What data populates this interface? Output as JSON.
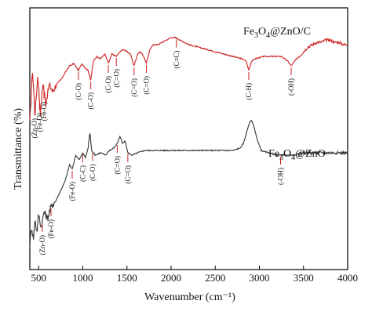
{
  "chart_data": {
    "type": "line",
    "xlabel": "Wavenumber (cm⁻¹)",
    "ylabel": "Transmittance (%)",
    "xlim": [
      400,
      4000
    ],
    "ylim": [
      0,
      100
    ],
    "xticks": [
      "500",
      "1000",
      "1500",
      "2000",
      "2500",
      "3000",
      "3500",
      "4000"
    ],
    "grid": false,
    "series": [
      {
        "name": "Fe₃O₄@ZnO/C",
        "color": "#cc1f1f",
        "points": [
          [
            400,
            58
          ],
          [
            430,
            80
          ],
          [
            460,
            62
          ],
          [
            490,
            78
          ],
          [
            520,
            62
          ],
          [
            550,
            75
          ],
          [
            580,
            66
          ],
          [
            620,
            74
          ],
          [
            660,
            71
          ],
          [
            700,
            74
          ],
          [
            750,
            76
          ],
          [
            800,
            79
          ],
          [
            850,
            82
          ],
          [
            900,
            83
          ],
          [
            950,
            80
          ],
          [
            990,
            83
          ],
          [
            1030,
            81
          ],
          [
            1060,
            80
          ],
          [
            1090,
            76
          ],
          [
            1120,
            84
          ],
          [
            1160,
            86
          ],
          [
            1200,
            85
          ],
          [
            1250,
            87
          ],
          [
            1290,
            83
          ],
          [
            1330,
            87
          ],
          [
            1380,
            86
          ],
          [
            1420,
            88
          ],
          [
            1460,
            89
          ],
          [
            1500,
            88
          ],
          [
            1540,
            87
          ],
          [
            1580,
            82
          ],
          [
            1620,
            87
          ],
          [
            1650,
            88
          ],
          [
            1690,
            86
          ],
          [
            1720,
            83
          ],
          [
            1760,
            89
          ],
          [
            1800,
            91
          ],
          [
            1850,
            91
          ],
          [
            1900,
            92
          ],
          [
            1950,
            93
          ],
          [
            2000,
            94
          ],
          [
            2050,
            94
          ],
          [
            2100,
            93
          ],
          [
            2150,
            92
          ],
          [
            2200,
            91
          ],
          [
            2300,
            90
          ],
          [
            2400,
            89
          ],
          [
            2500,
            88
          ],
          [
            2600,
            87
          ],
          [
            2700,
            86
          ],
          [
            2800,
            85
          ],
          [
            2850,
            84
          ],
          [
            2880,
            80
          ],
          [
            2910,
            84
          ],
          [
            2950,
            85
          ],
          [
            3050,
            86
          ],
          [
            3150,
            86
          ],
          [
            3250,
            86
          ],
          [
            3320,
            84
          ],
          [
            3360,
            82
          ],
          [
            3400,
            84
          ],
          [
            3450,
            86
          ],
          [
            3500,
            88
          ],
          [
            3550,
            90
          ],
          [
            3600,
            91
          ],
          [
            3650,
            92
          ],
          [
            3700,
            92
          ],
          [
            3750,
            93
          ],
          [
            3800,
            93
          ],
          [
            3850,
            92
          ],
          [
            3900,
            92
          ],
          [
            3950,
            91
          ],
          [
            4000,
            91
          ]
        ]
      },
      {
        "name": "Fe₃O₄@ZnO",
        "color": "#333333",
        "points": [
          [
            400,
            6
          ],
          [
            420,
            14
          ],
          [
            440,
            8
          ],
          [
            460,
            17
          ],
          [
            480,
            11
          ],
          [
            500,
            19
          ],
          [
            530,
            13
          ],
          [
            560,
            20
          ],
          [
            600,
            17
          ],
          [
            640,
            22
          ],
          [
            700,
            25
          ],
          [
            750,
            29
          ],
          [
            800,
            33
          ],
          [
            850,
            40
          ],
          [
            880,
            38
          ],
          [
            920,
            44
          ],
          [
            960,
            42
          ],
          [
            1000,
            45
          ],
          [
            1030,
            43
          ],
          [
            1060,
            47
          ],
          [
            1080,
            54
          ],
          [
            1100,
            46
          ],
          [
            1140,
            44
          ],
          [
            1200,
            45
          ],
          [
            1260,
            44
          ],
          [
            1300,
            46
          ],
          [
            1350,
            47
          ],
          [
            1390,
            49
          ],
          [
            1420,
            52
          ],
          [
            1450,
            49
          ],
          [
            1480,
            50
          ],
          [
            1510,
            45
          ],
          [
            1560,
            44
          ],
          [
            1620,
            45
          ],
          [
            1700,
            46
          ],
          [
            1800,
            46
          ],
          [
            1900,
            46
          ],
          [
            2000,
            46
          ],
          [
            2100,
            46
          ],
          [
            2200,
            46
          ],
          [
            2300,
            46
          ],
          [
            2400,
            46
          ],
          [
            2500,
            46
          ],
          [
            2600,
            46
          ],
          [
            2700,
            46
          ],
          [
            2780,
            47
          ],
          [
            2820,
            49
          ],
          [
            2850,
            53
          ],
          [
            2880,
            57
          ],
          [
            2910,
            59
          ],
          [
            2940,
            56
          ],
          [
            2980,
            50
          ],
          [
            3020,
            46
          ],
          [
            3100,
            45
          ],
          [
            3200,
            44
          ],
          [
            3250,
            44
          ],
          [
            3300,
            44
          ],
          [
            3400,
            44
          ],
          [
            3500,
            45
          ],
          [
            3600,
            45
          ],
          [
            3700,
            45
          ],
          [
            3800,
            45
          ],
          [
            3900,
            45
          ],
          [
            4000,
            45
          ]
        ]
      }
    ],
    "labels": {
      "series_top": [
        "Fe",
        "3",
        "O",
        "4",
        "@ZnO/C"
      ],
      "series_bottom": [
        "Fe",
        "3",
        "O",
        "4",
        "@ZnO"
      ]
    },
    "annotations": [
      {
        "series": 0,
        "x": 455,
        "text": "(Zn-O)"
      },
      {
        "series": 0,
        "x": 510,
        "text": "(Fe-O)"
      },
      {
        "series": 0,
        "x": 560,
        "text": "(Fe-O)"
      },
      {
        "series": 0,
        "x": 950,
        "text": "(C-O)"
      },
      {
        "series": 0,
        "x": 1090,
        "text": "(C-O)"
      },
      {
        "series": 0,
        "x": 1290,
        "text": "(C-O)"
      },
      {
        "series": 0,
        "x": 1380,
        "text": "(C=O)"
      },
      {
        "series": 0,
        "x": 1580,
        "text": "(C=O)"
      },
      {
        "series": 0,
        "x": 1720,
        "text": "(C=O)"
      },
      {
        "series": 0,
        "x": 2060,
        "text": "(C≡C)"
      },
      {
        "series": 0,
        "x": 2880,
        "text": "(C-H)"
      },
      {
        "series": 0,
        "x": 3360,
        "text": "(-OH)"
      },
      {
        "series": 1,
        "x": 540,
        "text": "(Zn-O)"
      },
      {
        "series": 1,
        "x": 640,
        "text": "(Fe-O)"
      },
      {
        "series": 1,
        "x": 880,
        "text": "(Fe-O)"
      },
      {
        "series": 1,
        "x": 1000,
        "text": "(C-C)"
      },
      {
        "series": 1,
        "x": 1110,
        "text": "(C-O)"
      },
      {
        "series": 1,
        "x": 1390,
        "text": "(C=O)"
      },
      {
        "series": 1,
        "x": 1510,
        "text": "(C=O)"
      },
      {
        "series": 1,
        "x": 3240,
        "text": "(-OH)"
      }
    ]
  }
}
